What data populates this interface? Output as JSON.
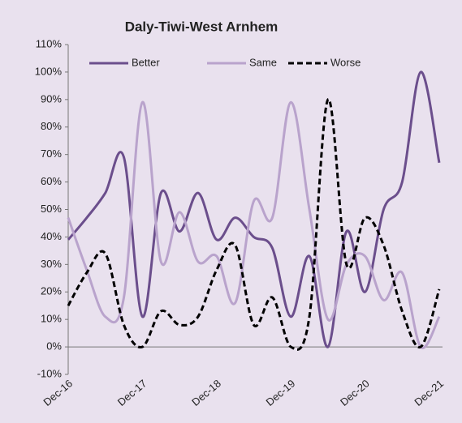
{
  "chart_data": {
    "type": "line",
    "title": "Daly-Tiwi-West Arnhem",
    "categories": [
      "Dec-16",
      null,
      null,
      null,
      "Dec-17",
      null,
      null,
      null,
      "Dec-18",
      null,
      null,
      null,
      "Dec-19",
      null,
      null,
      null,
      "Dec-20",
      null,
      null,
      null,
      "Dec-21"
    ],
    "series": [
      {
        "name": "Better",
        "color": "#6b4e8c",
        "dash": false,
        "values": [
          39,
          47,
          56,
          69,
          11,
          56,
          42,
          56,
          39,
          47,
          40,
          36,
          11,
          33,
          0,
          42,
          20,
          50,
          60,
          100,
          67
        ]
      },
      {
        "name": "Same",
        "color": "#b9a3cc",
        "dash": false,
        "values": [
          47,
          28,
          11,
          18,
          89,
          31,
          49,
          31,
          33,
          16,
          53,
          47,
          89,
          50,
          10,
          30,
          33,
          17,
          27,
          0,
          11
        ]
      },
      {
        "name": "Worse",
        "color": "#000000",
        "dash": true,
        "values": [
          15,
          27,
          34,
          8,
          0,
          13,
          8,
          11,
          28,
          37,
          8,
          18,
          0,
          11,
          90,
          30,
          47,
          37,
          13,
          0,
          21
        ]
      }
    ],
    "ylim": [
      -10,
      110
    ],
    "yticks": [
      {
        "value": -10,
        "label": "-10%"
      },
      {
        "value": 0,
        "label": "0%"
      },
      {
        "value": 10,
        "label": "10%"
      },
      {
        "value": 20,
        "label": "20%"
      },
      {
        "value": 30,
        "label": "30%"
      },
      {
        "value": 40,
        "label": "40%"
      },
      {
        "value": 50,
        "label": "50%"
      },
      {
        "value": 60,
        "label": "60%"
      },
      {
        "value": 70,
        "label": "70%"
      },
      {
        "value": 80,
        "label": "80%"
      },
      {
        "value": 90,
        "label": "90%"
      },
      {
        "value": 100,
        "label": "100%"
      },
      {
        "value": 110,
        "label": "110%"
      }
    ],
    "smooth": true,
    "grid": false,
    "legend": "top"
  }
}
